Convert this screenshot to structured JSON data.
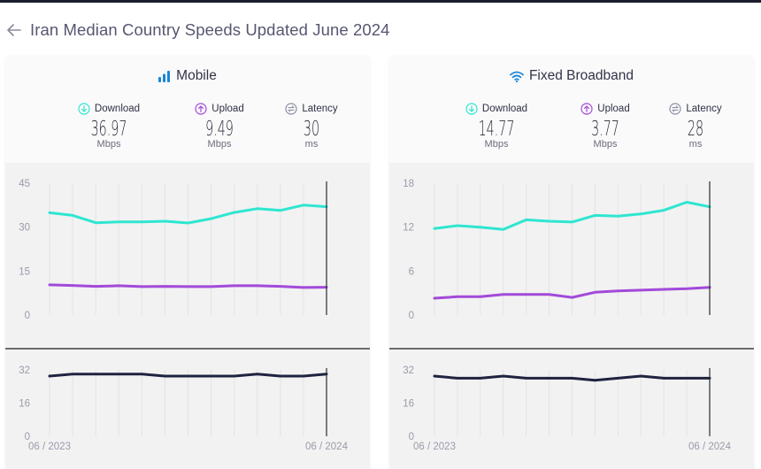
{
  "header": {
    "back_icon": "arrow-left-icon",
    "title": "Iran Median Country Speeds Updated June 2024"
  },
  "colors": {
    "download": "#2ee6d0",
    "upload": "#a24ad9",
    "latency": "#1f2340",
    "mobile_icon": "#1a86d8",
    "wifi_icon": "#1a86d8",
    "latency_icon": "#8e8fa2"
  },
  "cards": [
    {
      "key": "mobile",
      "title": "Mobile",
      "icon": "signal-bars-icon",
      "metrics": [
        {
          "label": "Download",
          "icon": "download-arrow-icon",
          "value": "36.97",
          "unit": "Mbps"
        },
        {
          "label": "Upload",
          "icon": "upload-arrow-icon",
          "value": "9.49",
          "unit": "Mbps"
        },
        {
          "label": "Latency",
          "icon": "latency-icon",
          "value": "30",
          "unit": "ms"
        }
      ]
    },
    {
      "key": "broadband",
      "title": "Fixed Broadband",
      "icon": "wifi-icon",
      "metrics": [
        {
          "label": "Download",
          "icon": "download-arrow-icon",
          "value": "14.77",
          "unit": "Mbps"
        },
        {
          "label": "Upload",
          "icon": "upload-arrow-icon",
          "value": "3.77",
          "unit": "Mbps"
        },
        {
          "label": "Latency",
          "icon": "latency-icon",
          "value": "28",
          "unit": "ms"
        }
      ]
    }
  ],
  "chart_data": [
    {
      "type": "line",
      "title": "Mobile speeds",
      "x": [
        "06/2023",
        "07/2023",
        "08/2023",
        "09/2023",
        "10/2023",
        "11/2023",
        "12/2023",
        "01/2024",
        "02/2024",
        "03/2024",
        "04/2024",
        "05/2024",
        "06/2024"
      ],
      "x_tick_labels": [
        "06 / 2023",
        "06 / 2024"
      ],
      "ylim": [
        0,
        45
      ],
      "y_ticks": [
        "0",
        "15",
        "30",
        "45"
      ],
      "grid": true,
      "series": [
        {
          "name": "Download",
          "values": [
            34.9,
            34.0,
            31.5,
            31.8,
            31.8,
            32.0,
            31.4,
            32.9,
            35.0,
            36.3,
            35.7,
            37.5,
            36.97
          ]
        },
        {
          "name": "Upload",
          "values": [
            10.3,
            10.1,
            9.8,
            10.0,
            9.7,
            9.8,
            9.7,
            9.7,
            10.0,
            10.0,
            9.8,
            9.4,
            9.49
          ]
        }
      ]
    },
    {
      "type": "line",
      "title": "Mobile latency",
      "x": [
        "06/2023",
        "07/2023",
        "08/2023",
        "09/2023",
        "10/2023",
        "11/2023",
        "12/2023",
        "01/2024",
        "02/2024",
        "03/2024",
        "04/2024",
        "05/2024",
        "06/2024"
      ],
      "x_tick_labels": [
        "06 / 2023",
        "06 / 2024"
      ],
      "ylim": [
        0,
        32
      ],
      "y_ticks": [
        "0",
        "16",
        "32"
      ],
      "grid": true,
      "series": [
        {
          "name": "Latency",
          "values": [
            29,
            30,
            30,
            30,
            30,
            29,
            29,
            29,
            29,
            30,
            29,
            29,
            30
          ]
        }
      ]
    },
    {
      "type": "line",
      "title": "Fixed Broadband speeds",
      "x": [
        "06/2023",
        "07/2023",
        "08/2023",
        "09/2023",
        "10/2023",
        "11/2023",
        "12/2023",
        "01/2024",
        "02/2024",
        "03/2024",
        "04/2024",
        "05/2024",
        "06/2024"
      ],
      "x_tick_labels": [
        "06 / 2023",
        "06 / 2024"
      ],
      "ylim": [
        0,
        18
      ],
      "y_ticks": [
        "0",
        "6",
        "12",
        "18"
      ],
      "grid": true,
      "series": [
        {
          "name": "Download",
          "values": [
            11.8,
            12.2,
            12.0,
            11.7,
            13.0,
            12.8,
            12.7,
            13.6,
            13.5,
            13.8,
            14.3,
            15.4,
            14.77
          ]
        },
        {
          "name": "Upload",
          "values": [
            2.3,
            2.5,
            2.5,
            2.8,
            2.8,
            2.8,
            2.4,
            3.1,
            3.3,
            3.4,
            3.5,
            3.6,
            3.77
          ]
        }
      ]
    },
    {
      "type": "line",
      "title": "Fixed Broadband latency",
      "x": [
        "06/2023",
        "07/2023",
        "08/2023",
        "09/2023",
        "10/2023",
        "11/2023",
        "12/2023",
        "01/2024",
        "02/2024",
        "03/2024",
        "04/2024",
        "05/2024",
        "06/2024"
      ],
      "x_tick_labels": [
        "06 / 2023",
        "06 / 2024"
      ],
      "ylim": [
        0,
        32
      ],
      "y_ticks": [
        "0",
        "16",
        "32"
      ],
      "grid": true,
      "series": [
        {
          "name": "Latency",
          "values": [
            29,
            28,
            28,
            29,
            28,
            28,
            28,
            27,
            28,
            29,
            28,
            28,
            28
          ]
        }
      ]
    }
  ]
}
